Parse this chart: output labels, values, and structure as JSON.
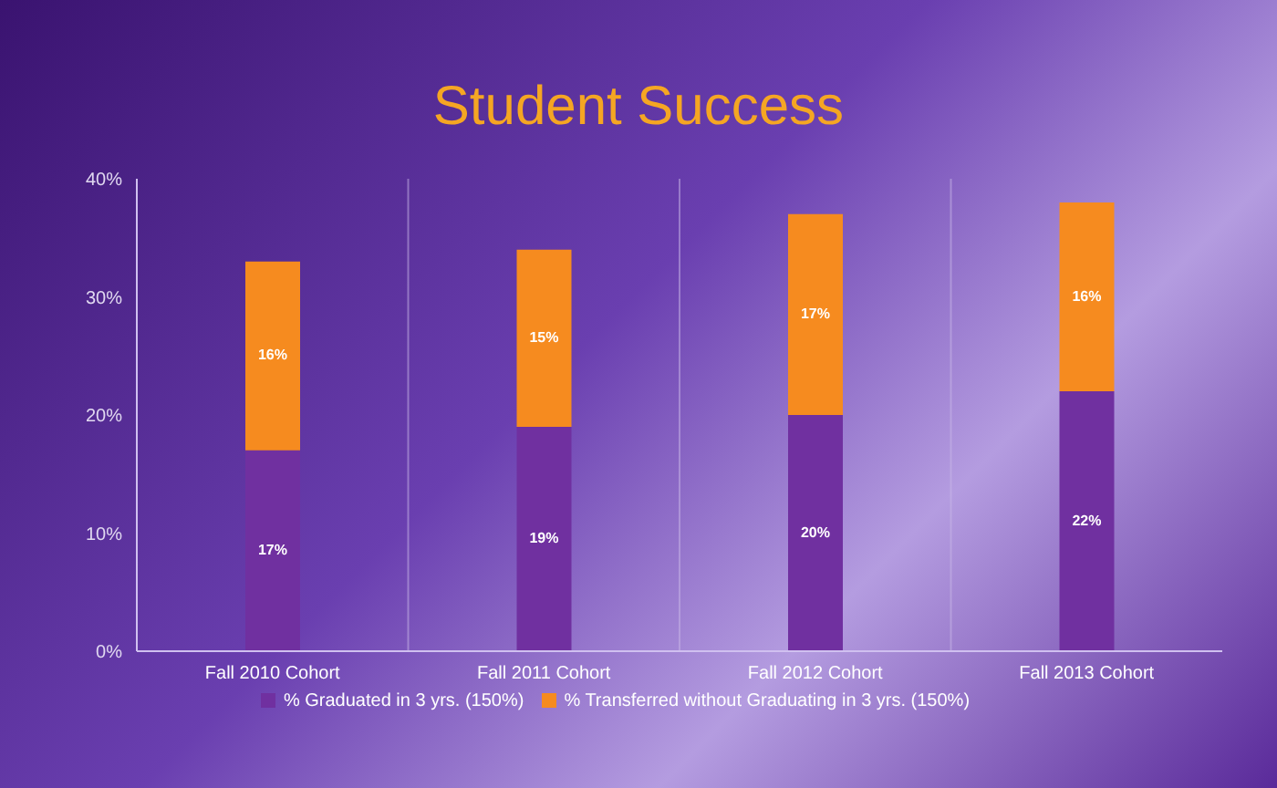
{
  "chart_data": {
    "type": "bar",
    "title": "Student Success",
    "stacked": true,
    "categories": [
      "Fall 2010 Cohort",
      "Fall 2011 Cohort",
      "Fall 2012 Cohort",
      "Fall 2013 Cohort"
    ],
    "series": [
      {
        "name": "% Graduated in 3 yrs. (150%)",
        "color": "#7030a0",
        "values": [
          17,
          19,
          20,
          22
        ],
        "value_labels": [
          "17%",
          "19%",
          "20%",
          "22%"
        ]
      },
      {
        "name": "% Transferred without Graduating in 3 yrs. (150%)",
        "color": "#f68b1f",
        "values": [
          16,
          15,
          17,
          16
        ],
        "value_labels": [
          "16%",
          "15%",
          "17%",
          "16%"
        ]
      }
    ],
    "ylim": [
      0,
      40
    ],
    "yticks": [
      {
        "value": 0,
        "label": "0%"
      },
      {
        "value": 10,
        "label": "10%"
      },
      {
        "value": 20,
        "label": "20%"
      },
      {
        "value": 30,
        "label": "30%"
      },
      {
        "value": 40,
        "label": "40%"
      }
    ],
    "grid": "x",
    "legend": "bottom"
  }
}
